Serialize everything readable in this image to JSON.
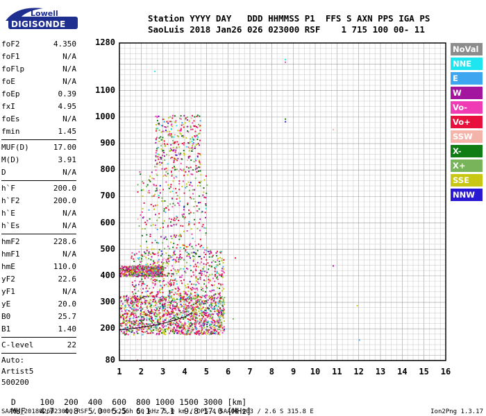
{
  "logo": {
    "top_text": "Lowell",
    "main_text": "DIGISONDE",
    "bg_color": "#1e2f8f"
  },
  "header": {
    "line1": "Station YYYY DAY   DDD HHMMSS P1  FFS S AXN PPS IGA PS",
    "line2": "SaoLuis 2018 Jan26 026 023000 RSF    1 715 100 00- 11"
  },
  "params_group1": [
    {
      "name": "foF2",
      "value": "4.350"
    },
    {
      "name": "foF1",
      "value": "N/A"
    },
    {
      "name": "foFlp",
      "value": "N/A"
    },
    {
      "name": "foE",
      "value": "N/A"
    },
    {
      "name": "foEp",
      "value": "0.39"
    },
    {
      "name": "fxI",
      "value": "4.95"
    },
    {
      "name": "foEs",
      "value": "N/A"
    },
    {
      "name": "fmin",
      "value": "1.45"
    }
  ],
  "params_group2": [
    {
      "name": "MUF(D)",
      "value": "17.00"
    },
    {
      "name": "M(D)",
      "value": "3.91"
    },
    {
      "name": "D",
      "value": "N/A"
    }
  ],
  "params_group3": [
    {
      "name": "h`F",
      "value": "200.0"
    },
    {
      "name": "h`F2",
      "value": "200.0"
    },
    {
      "name": "h`E",
      "value": "N/A"
    },
    {
      "name": "h`Es",
      "value": "N/A"
    }
  ],
  "params_group4": [
    {
      "name": "hmF2",
      "value": "228.6"
    },
    {
      "name": "hmF1",
      "value": "N/A"
    },
    {
      "name": "hmE",
      "value": "110.0"
    },
    {
      "name": "yF2",
      "value": "22.6"
    },
    {
      "name": "yF1",
      "value": "N/A"
    },
    {
      "name": "yE",
      "value": "20.0"
    },
    {
      "name": "B0",
      "value": "25.7"
    },
    {
      "name": "B1",
      "value": "1.40"
    }
  ],
  "params_group5": [
    {
      "name": "C-level",
      "value": "22"
    }
  ],
  "notes": [
    "Auto:",
    "Artist5",
    "500200"
  ],
  "legend": [
    {
      "label": "NoVal",
      "color": "#8c8c8c"
    },
    {
      "label": "NNE",
      "color": "#1ee6f0"
    },
    {
      "label": "E",
      "color": "#3ea6f0"
    },
    {
      "label": "W",
      "color": "#a3159e"
    },
    {
      "label": "Vo-",
      "color": "#f03cb4"
    },
    {
      "label": "Vo+",
      "color": "#e8103c"
    },
    {
      "label": "SSW",
      "color": "#f5b4aa"
    },
    {
      "label": "X-",
      "color": "#0f7d14"
    },
    {
      "label": "X+",
      "color": "#78b45a"
    },
    {
      "label": "SSE",
      "color": "#c8c814"
    },
    {
      "label": "NNW",
      "color": "#2a19d2"
    }
  ],
  "chart_data": {
    "type": "scatter",
    "xlim": [
      1,
      16
    ],
    "ylim": [
      80,
      1280
    ],
    "x_ticks": [
      1,
      2,
      3,
      4,
      5,
      6,
      7,
      8,
      9,
      10,
      11,
      12,
      13,
      14,
      15,
      16
    ],
    "y_tick_labels": [
      80,
      200,
      300,
      400,
      500,
      600,
      700,
      800,
      900,
      1000,
      1100,
      1280
    ],
    "grid": true,
    "trace": {
      "name": "virtual height trace",
      "x": [
        1.0,
        1.5,
        2.0,
        2.5,
        3.0,
        3.5,
        4.0,
        4.35
      ],
      "y": [
        195,
        200,
        205,
        212,
        220,
        232,
        245,
        262
      ]
    },
    "clusters": [
      {
        "x": [
          1.0,
          3.0
        ],
        "y": [
          400,
          440
        ],
        "density": "medium"
      },
      {
        "x": [
          1.0,
          5.8
        ],
        "y": [
          180,
          330
        ],
        "density": "high"
      },
      {
        "x": [
          1.5,
          5.8
        ],
        "y": [
          330,
          500
        ],
        "density": "medium"
      },
      {
        "x": [
          1.8,
          5.0
        ],
        "y": [
          500,
          800
        ],
        "density": "low"
      },
      {
        "x": [
          2.6,
          4.7
        ],
        "y": [
          800,
          1010
        ],
        "density": "low"
      }
    ],
    "isolated_points": [
      {
        "x": 8.6,
        "y": 1220
      },
      {
        "x": 8.6,
        "y": 1210
      },
      {
        "x": 8.6,
        "y": 995
      },
      {
        "x": 8.6,
        "y": 985
      },
      {
        "x": 10.8,
        "y": 440
      },
      {
        "x": 10.8,
        "y": 955
      },
      {
        "x": 11.9,
        "y": 290
      },
      {
        "x": 12.0,
        "y": 160
      },
      {
        "x": 6.3,
        "y": 470
      },
      {
        "x": 6.2,
        "y": 240
      },
      {
        "x": 2.6,
        "y": 1175
      },
      {
        "x": 1.8,
        "y": 84
      }
    ]
  },
  "muf_table": {
    "d_label": "D",
    "d_values": [
      "100",
      "200",
      "400",
      "600",
      "800",
      "1000",
      "1500",
      "3000"
    ],
    "d_unit": "[km]",
    "muf_label": "MUF",
    "muf_values": [
      "4.7",
      "4.8",
      "5.0",
      "5.5",
      "6.1",
      "7.1",
      "9.8",
      "17.0"
    ],
    "muf_unit": "[MHz]"
  },
  "footer": "SAA0K_2018026023000.RSF / 300fx256h 50 kHz 5.0 km / DPS-4 SAA0K 903 / 2.6 S 315.8 E",
  "version": "Ion2Png 1.3.17"
}
